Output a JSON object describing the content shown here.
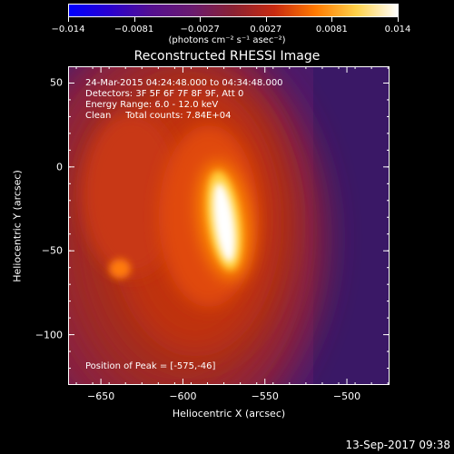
{
  "colorbar": {
    "min": -0.014,
    "max": 0.014,
    "tick_labels": [
      "-0.014",
      "-0.0081",
      "-0.0027",
      "0.0027",
      "0.0081",
      "0.014"
    ],
    "units": "(photons cm⁻² s⁻¹ asec⁻²)",
    "gradient_colors": [
      "#0000ff",
      "#2a00d0",
      "#551090",
      "#6a1b6f",
      "#8a2233",
      "#c82a10",
      "#ff7a00",
      "#ffd24a",
      "#ffffff"
    ]
  },
  "title": "Reconstructed RHESSI Image",
  "annotations": {
    "line1": "24-Mar-2015 04:24:48.000 to 04:34:48.000",
    "line2": "Detectors: 3F 5F 6F 7F 8F 9F, Att 0",
    "line3": "Energy Range: 6.0 - 12.0 keV",
    "line4": "Clean     Total counts: 7.84E+04",
    "peak": "Position of Peak = [-575,-46]"
  },
  "axes": {
    "xlabel": "Heliocentric X (arcsec)",
    "ylabel": "Heliocentric Y (arcsec)",
    "x_range": [
      -670,
      -474
    ],
    "y_range": [
      -130,
      60
    ],
    "x_ticks": [
      -650,
      -600,
      -550,
      -500
    ],
    "x_tick_labels": [
      "−650",
      "−600",
      "−550",
      "−500"
    ],
    "y_ticks": [
      50,
      0,
      -50,
      -100
    ],
    "y_tick_labels": [
      "50",
      "0",
      "−50",
      "−100"
    ]
  },
  "peak_position": {
    "x": -575,
    "y": -46
  },
  "datestamp": "13-Sep-2017 09:38"
}
